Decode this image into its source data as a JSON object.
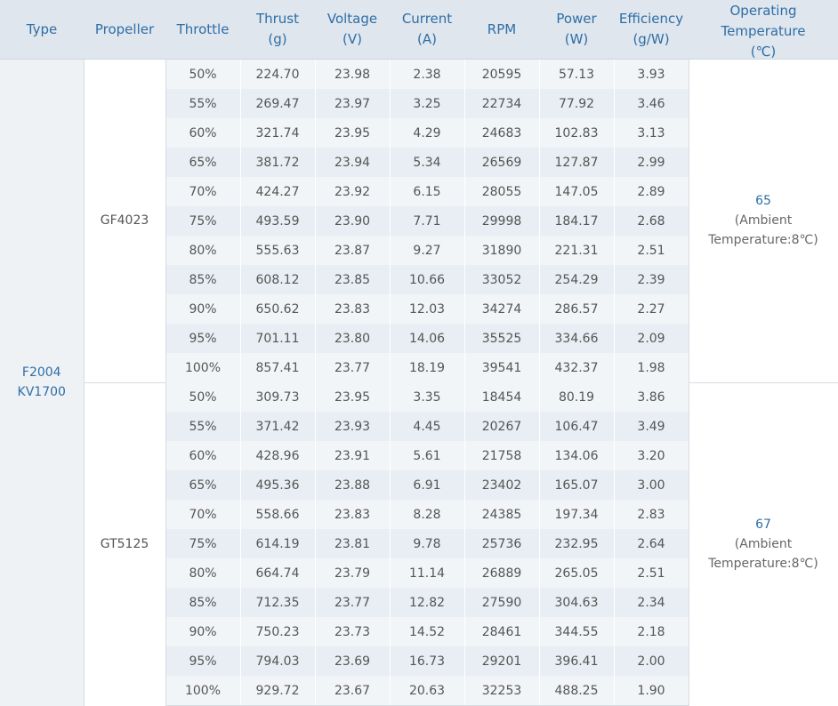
{
  "header": {
    "type": [
      "Type"
    ],
    "propeller": [
      "Propeller"
    ],
    "throttle": [
      "Throttle"
    ],
    "thrust": [
      "Thrust",
      "(g)"
    ],
    "voltage": [
      "Voltage",
      "(V)"
    ],
    "current": [
      "Current",
      "(A)"
    ],
    "rpm": [
      "RPM"
    ],
    "power": [
      "Power",
      "(W)"
    ],
    "efficiency": [
      "Efficiency",
      "(g/W)"
    ],
    "temperature": [
      "Operating",
      "Temperature",
      "(℃)"
    ]
  },
  "motor": [
    "F2004",
    "KV1700"
  ],
  "groups": [
    {
      "propeller": "GF4023",
      "temperature": "65",
      "temperature_note": [
        "(Ambient",
        "Temperature:8℃)"
      ],
      "rows": [
        [
          "50%",
          "224.70",
          "23.98",
          "2.38",
          "20595",
          "57.13",
          "3.93"
        ],
        [
          "55%",
          "269.47",
          "23.97",
          "3.25",
          "22734",
          "77.92",
          "3.46"
        ],
        [
          "60%",
          "321.74",
          "23.95",
          "4.29",
          "24683",
          "102.83",
          "3.13"
        ],
        [
          "65%",
          "381.72",
          "23.94",
          "5.34",
          "26569",
          "127.87",
          "2.99"
        ],
        [
          "70%",
          "424.27",
          "23.92",
          "6.15",
          "28055",
          "147.05",
          "2.89"
        ],
        [
          "75%",
          "493.59",
          "23.90",
          "7.71",
          "29998",
          "184.17",
          "2.68"
        ],
        [
          "80%",
          "555.63",
          "23.87",
          "9.27",
          "31890",
          "221.31",
          "2.51"
        ],
        [
          "85%",
          "608.12",
          "23.85",
          "10.66",
          "33052",
          "254.29",
          "2.39"
        ],
        [
          "90%",
          "650.62",
          "23.83",
          "12.03",
          "34274",
          "286.57",
          "2.27"
        ],
        [
          "95%",
          "701.11",
          "23.80",
          "14.06",
          "35525",
          "334.66",
          "2.09"
        ],
        [
          "100%",
          "857.41",
          "23.77",
          "18.19",
          "39541",
          "432.37",
          "1.98"
        ]
      ]
    },
    {
      "propeller": "GT5125",
      "temperature": "67",
      "temperature_note": [
        "(Ambient",
        "Temperature:8℃)"
      ],
      "rows": [
        [
          "50%",
          "309.73",
          "23.95",
          "3.35",
          "18454",
          "80.19",
          "3.86"
        ],
        [
          "55%",
          "371.42",
          "23.93",
          "4.45",
          "20267",
          "106.47",
          "3.49"
        ],
        [
          "60%",
          "428.96",
          "23.91",
          "5.61",
          "21758",
          "134.06",
          "3.20"
        ],
        [
          "65%",
          "495.36",
          "23.88",
          "6.91",
          "23402",
          "165.07",
          "3.00"
        ],
        [
          "70%",
          "558.66",
          "23.83",
          "8.28",
          "24385",
          "197.34",
          "2.83"
        ],
        [
          "75%",
          "614.19",
          "23.81",
          "9.78",
          "25736",
          "232.95",
          "2.64"
        ],
        [
          "80%",
          "664.74",
          "23.79",
          "11.14",
          "26889",
          "265.05",
          "2.51"
        ],
        [
          "85%",
          "712.35",
          "23.77",
          "12.82",
          "27590",
          "304.63",
          "2.34"
        ],
        [
          "90%",
          "750.23",
          "23.73",
          "14.52",
          "28461",
          "344.55",
          "2.18"
        ],
        [
          "95%",
          "794.03",
          "23.69",
          "16.73",
          "29201",
          "396.41",
          "2.00"
        ],
        [
          "100%",
          "929.72",
          "23.67",
          "20.63",
          "32253",
          "488.25",
          "1.90"
        ]
      ]
    }
  ]
}
